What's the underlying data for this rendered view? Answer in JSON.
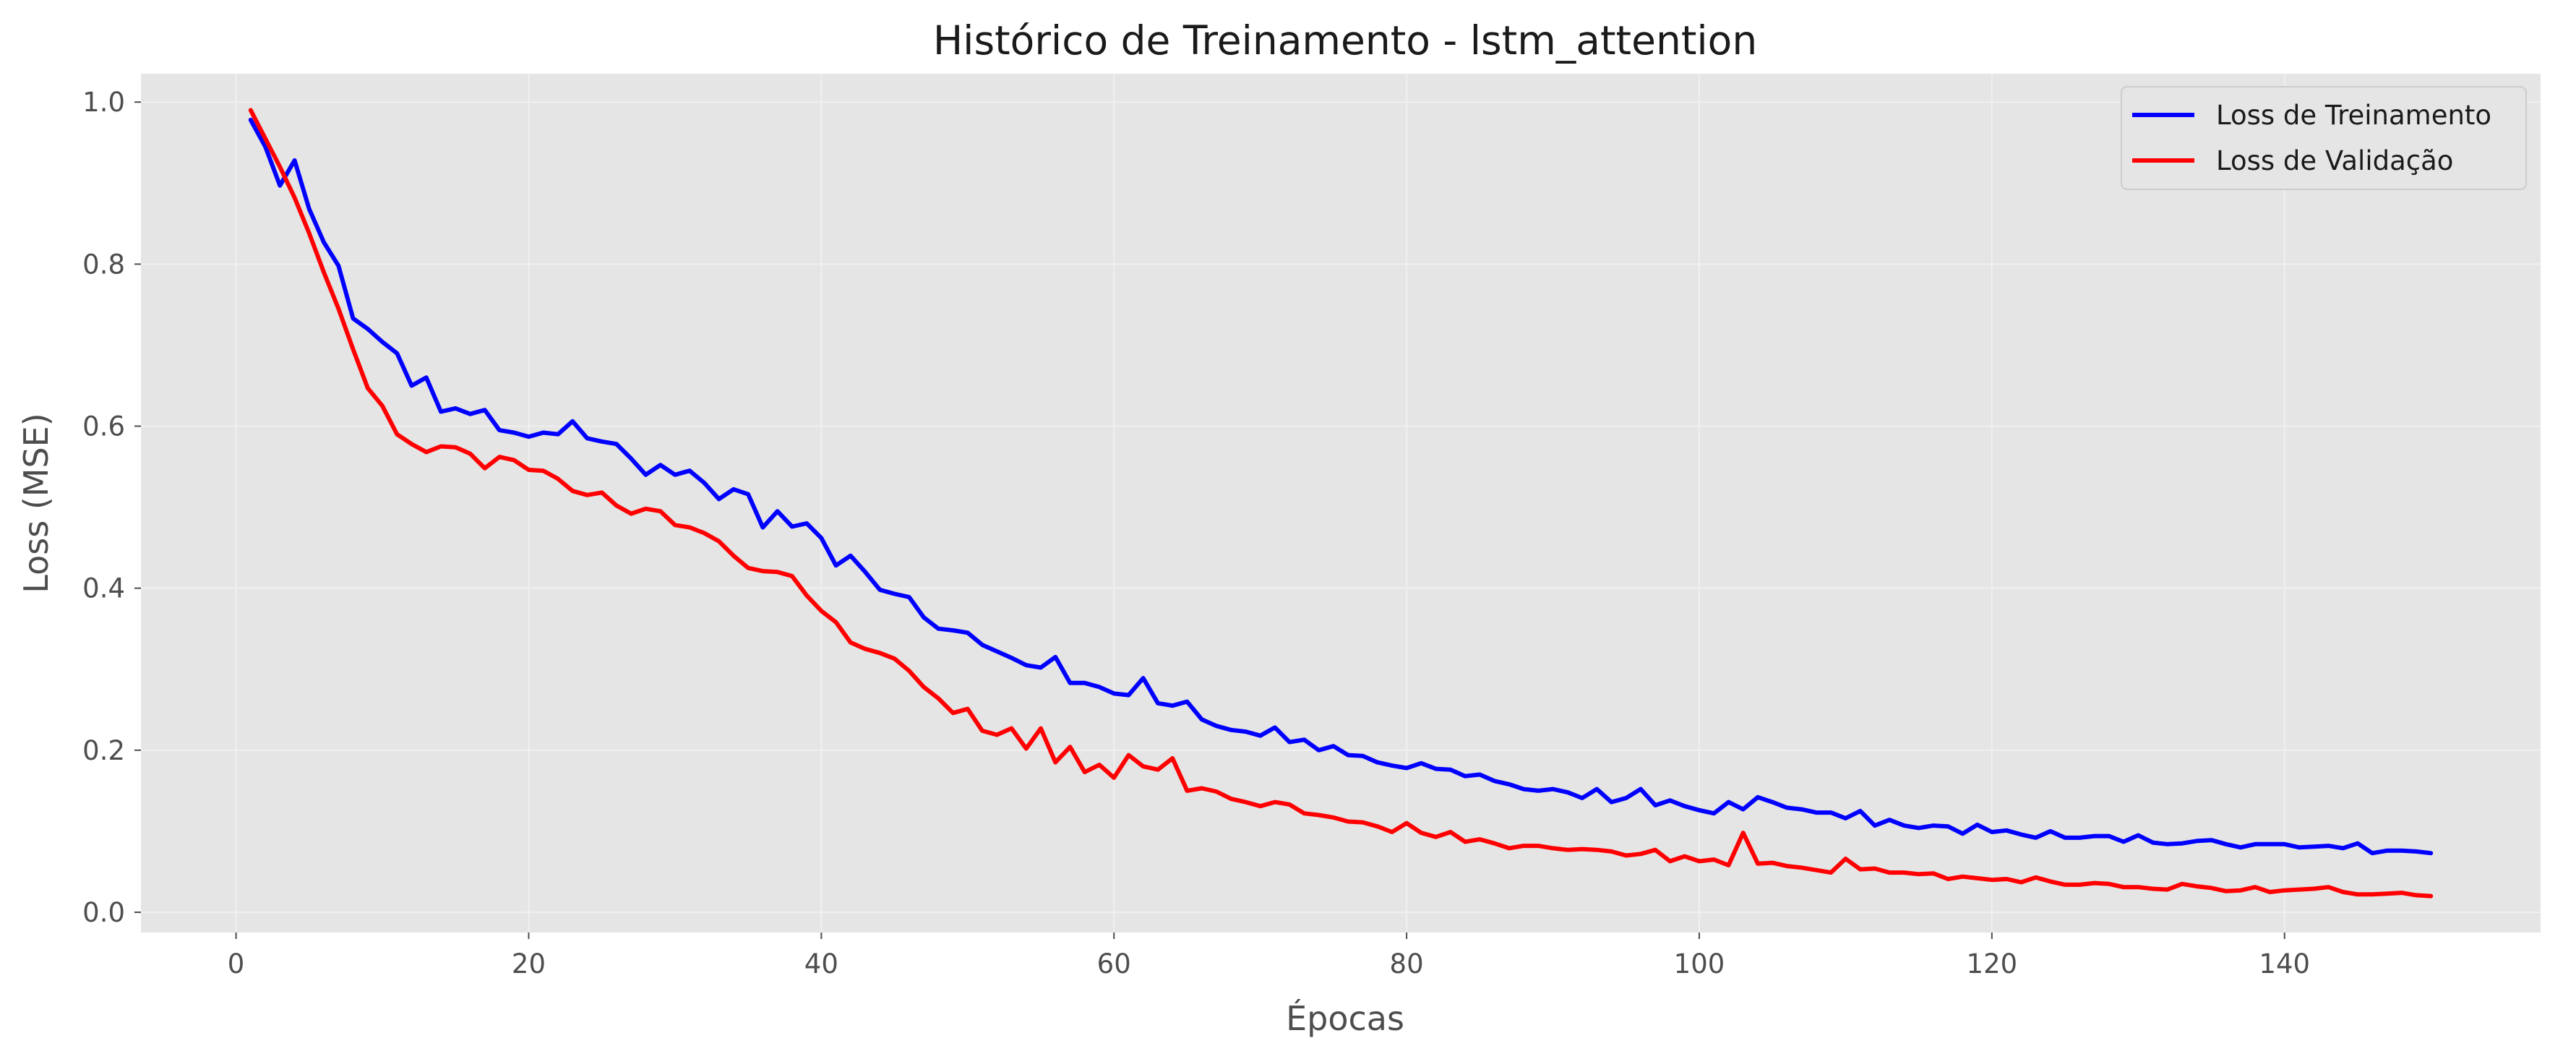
{
  "chart_data": {
    "type": "line",
    "title": "Histórico de Treinamento - lstm_attention",
    "xlabel": "Épocas",
    "ylabel": "Loss (MSE)",
    "xlim": [
      -6.5,
      157.5
    ],
    "ylim": [
      -0.025,
      1.035
    ],
    "x_ticks": [
      0,
      20,
      40,
      60,
      80,
      100,
      120,
      140
    ],
    "y_ticks": [
      0.0,
      0.2,
      0.4,
      0.6,
      0.8,
      1.0
    ],
    "grid": true,
    "legend_position": "top-right",
    "background_color": "#e5e5e5",
    "x": [
      1,
      2,
      3,
      4,
      5,
      6,
      7,
      8,
      9,
      10,
      11,
      12,
      13,
      14,
      15,
      16,
      17,
      18,
      19,
      20,
      21,
      22,
      23,
      24,
      25,
      26,
      27,
      28,
      29,
      30,
      31,
      32,
      33,
      34,
      35,
      36,
      37,
      38,
      39,
      40,
      41,
      42,
      43,
      44,
      45,
      46,
      47,
      48,
      49,
      50,
      51,
      52,
      53,
      54,
      55,
      56,
      57,
      58,
      59,
      60,
      61,
      62,
      63,
      64,
      65,
      66,
      67,
      68,
      69,
      70,
      71,
      72,
      73,
      74,
      75,
      76,
      77,
      78,
      79,
      80,
      81,
      82,
      83,
      84,
      85,
      86,
      87,
      88,
      89,
      90,
      91,
      92,
      93,
      94,
      95,
      96,
      97,
      98,
      99,
      100,
      101,
      102,
      103,
      104,
      105,
      106,
      107,
      108,
      109,
      110,
      111,
      112,
      113,
      114,
      115,
      116,
      117,
      118,
      119,
      120,
      121,
      122,
      123,
      124,
      125,
      126,
      127,
      128,
      129,
      130,
      131,
      132,
      133,
      134,
      135,
      136,
      137,
      138,
      139,
      140,
      141,
      142,
      143,
      144,
      145,
      146,
      147,
      148,
      149,
      150
    ],
    "series": [
      {
        "name": "Loss de Treinamento",
        "color": "#0000ff",
        "values": [
          0.978,
          0.945,
          0.897,
          0.928,
          0.868,
          0.827,
          0.798,
          0.733,
          0.72,
          0.704,
          0.69,
          0.65,
          0.66,
          0.618,
          0.622,
          0.615,
          0.62,
          0.595,
          0.592,
          0.587,
          0.592,
          0.59,
          0.606,
          0.585,
          0.581,
          0.578,
          0.56,
          0.54,
          0.552,
          0.54,
          0.545,
          0.53,
          0.51,
          0.522,
          0.516,
          0.475,
          0.495,
          0.476,
          0.48,
          0.462,
          0.428,
          0.44,
          0.42,
          0.398,
          0.393,
          0.389,
          0.364,
          0.35,
          0.348,
          0.345,
          0.33,
          0.322,
          0.314,
          0.305,
          0.302,
          0.315,
          0.283,
          0.283,
          0.278,
          0.27,
          0.268,
          0.289,
          0.258,
          0.255,
          0.26,
          0.238,
          0.23,
          0.225,
          0.223,
          0.218,
          0.228,
          0.21,
          0.213,
          0.2,
          0.205,
          0.194,
          0.193,
          0.185,
          0.181,
          0.178,
          0.184,
          0.177,
          0.176,
          0.168,
          0.17,
          0.162,
          0.158,
          0.152,
          0.15,
          0.152,
          0.148,
          0.141,
          0.152,
          0.136,
          0.141,
          0.152,
          0.132,
          0.138,
          0.131,
          0.126,
          0.122,
          0.136,
          0.127,
          0.142,
          0.136,
          0.129,
          0.127,
          0.123,
          0.123,
          0.116,
          0.125,
          0.107,
          0.114,
          0.107,
          0.104,
          0.107,
          0.106,
          0.097,
          0.108,
          0.099,
          0.101,
          0.096,
          0.092,
          0.1,
          0.092,
          0.092,
          0.094,
          0.094,
          0.087,
          0.095,
          0.086,
          0.084,
          0.085,
          0.088,
          0.089,
          0.084,
          0.08,
          0.084,
          0.084,
          0.084,
          0.08,
          0.081,
          0.082,
          0.079,
          0.085,
          0.073,
          0.076,
          0.076,
          0.075,
          0.073
        ]
      },
      {
        "name": "Loss de Validação",
        "color": "#ff0000",
        "values": [
          0.99,
          0.955,
          0.92,
          0.882,
          0.838,
          0.79,
          0.745,
          0.695,
          0.647,
          0.625,
          0.59,
          0.578,
          0.568,
          0.575,
          0.574,
          0.566,
          0.548,
          0.562,
          0.558,
          0.546,
          0.545,
          0.535,
          0.52,
          0.515,
          0.518,
          0.502,
          0.492,
          0.498,
          0.495,
          0.478,
          0.475,
          0.468,
          0.458,
          0.44,
          0.425,
          0.421,
          0.42,
          0.415,
          0.391,
          0.372,
          0.358,
          0.333,
          0.325,
          0.32,
          0.313,
          0.298,
          0.278,
          0.264,
          0.246,
          0.251,
          0.224,
          0.219,
          0.227,
          0.202,
          0.227,
          0.185,
          0.204,
          0.173,
          0.182,
          0.166,
          0.194,
          0.18,
          0.176,
          0.19,
          0.15,
          0.153,
          0.149,
          0.14,
          0.136,
          0.131,
          0.136,
          0.133,
          0.122,
          0.12,
          0.117,
          0.112,
          0.111,
          0.106,
          0.099,
          0.11,
          0.098,
          0.093,
          0.099,
          0.087,
          0.09,
          0.085,
          0.079,
          0.082,
          0.082,
          0.079,
          0.077,
          0.078,
          0.077,
          0.075,
          0.07,
          0.072,
          0.077,
          0.063,
          0.069,
          0.063,
          0.065,
          0.058,
          0.098,
          0.06,
          0.061,
          0.057,
          0.055,
          0.052,
          0.049,
          0.066,
          0.053,
          0.054,
          0.049,
          0.049,
          0.047,
          0.048,
          0.041,
          0.044,
          0.042,
          0.04,
          0.041,
          0.037,
          0.043,
          0.038,
          0.034,
          0.034,
          0.036,
          0.035,
          0.031,
          0.031,
          0.029,
          0.028,
          0.035,
          0.032,
          0.03,
          0.026,
          0.027,
          0.031,
          0.025,
          0.027,
          0.028,
          0.029,
          0.031,
          0.025,
          0.022,
          0.022,
          0.023,
          0.024,
          0.021,
          0.02
        ]
      }
    ]
  }
}
